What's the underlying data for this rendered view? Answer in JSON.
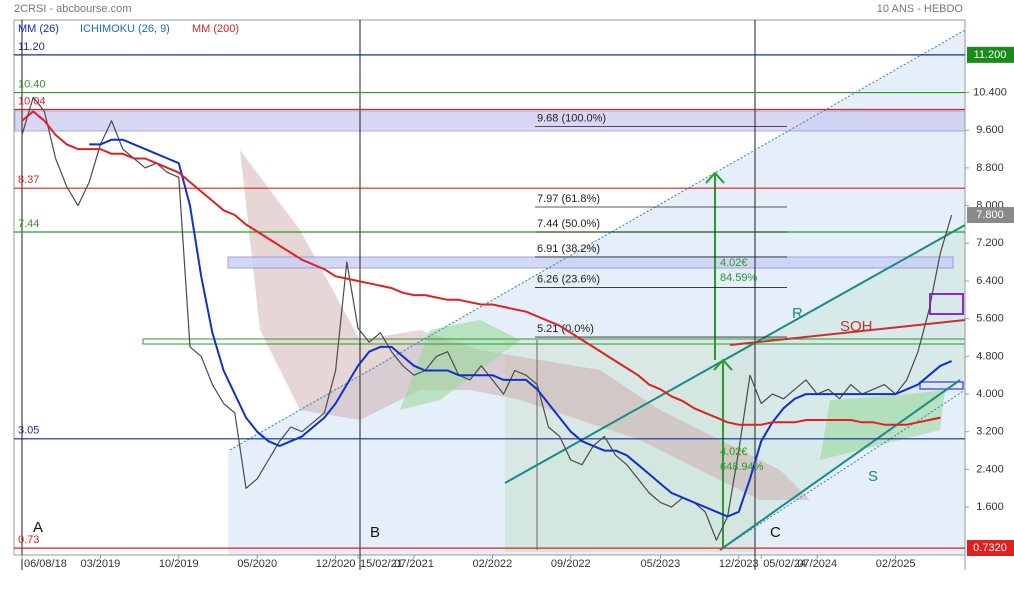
{
  "chart_data": {
    "type": "line",
    "title": "2CRSI - abcbourse.com",
    "subtitle": "10 ANS - HEBDO",
    "ichimoku_label": "ICHIMOKU (26, 9)",
    "categories": [
      "06/08/18",
      null,
      null,
      null,
      null,
      null,
      null,
      "03/2019",
      null,
      null,
      null,
      null,
      null,
      null,
      "10/2019",
      null,
      null,
      null,
      null,
      null,
      null,
      "05/2020",
      null,
      null,
      null,
      null,
      null,
      null,
      "12/2020",
      null,
      "15/02/21",
      null,
      null,
      null,
      null,
      "07/2021",
      null,
      null,
      null,
      null,
      null,
      null,
      "02/2022",
      null,
      null,
      null,
      null,
      null,
      null,
      "09/2022",
      null,
      null,
      null,
      null,
      null,
      null,
      null,
      "05/2023",
      null,
      null,
      null,
      null,
      null,
      null,
      "12/2023",
      null,
      "05/02/24",
      null,
      null,
      null,
      null,
      "07/2024",
      null,
      null,
      null,
      null,
      null,
      null,
      "02/2025",
      null,
      null,
      null,
      null,
      null,
      null
    ],
    "values": [
      9.5,
      10.3,
      10.0,
      9.0,
      8.4,
      8.0,
      8.5,
      9.3,
      9.8,
      9.2,
      9.0,
      8.8,
      8.9,
      8.7,
      8.6,
      5.0,
      4.8,
      4.2,
      3.8,
      3.6,
      2.0,
      2.2,
      2.6,
      3.0,
      3.3,
      3.2,
      3.4,
      3.6,
      4.5,
      6.8,
      5.4,
      5.1,
      5.3,
      4.9,
      4.6,
      4.4,
      4.5,
      4.8,
      4.9,
      4.4,
      4.3,
      4.6,
      4.3,
      4.0,
      4.5,
      4.4,
      4.2,
      3.3,
      3.1,
      2.6,
      2.5,
      2.9,
      3.1,
      2.7,
      2.5,
      2.2,
      1.9,
      1.7,
      1.6,
      1.8,
      1.7,
      1.5,
      0.9,
      1.4,
      2.8,
      4.4,
      3.8,
      4.0,
      3.9,
      4.1,
      4.3,
      4.0,
      4.1,
      3.9,
      4.2,
      4.0,
      4.1,
      4.2,
      4.0,
      4.3,
      4.9,
      5.8,
      7.0,
      7.8,
      null
    ],
    "color": "#4a4a4a",
    "series": [
      {
        "name": "MM (26)",
        "color": "#1030c8",
        "values": [
          null,
          null,
          null,
          null,
          null,
          null,
          9.3,
          9.3,
          9.4,
          9.4,
          9.3,
          9.2,
          9.1,
          9.0,
          8.9,
          8.0,
          6.5,
          5.3,
          4.5,
          4.0,
          3.5,
          3.2,
          3.0,
          2.9,
          3.0,
          3.1,
          3.3,
          3.5,
          3.8,
          4.2,
          4.6,
          4.9,
          5.0,
          5.0,
          4.8,
          4.6,
          4.5,
          4.5,
          4.5,
          4.4,
          4.4,
          4.4,
          4.4,
          4.3,
          4.3,
          4.3,
          4.1,
          3.8,
          3.5,
          3.2,
          3.0,
          2.9,
          2.8,
          2.8,
          2.7,
          2.5,
          2.3,
          2.1,
          1.9,
          1.8,
          1.7,
          1.6,
          1.5,
          1.4,
          1.5,
          2.2,
          3.0,
          3.4,
          3.7,
          3.9,
          4.0,
          4.0,
          4.0,
          4.0,
          4.0,
          4.0,
          4.0,
          4.0,
          4.0,
          4.1,
          4.2,
          4.4,
          4.6,
          4.7,
          null
        ]
      },
      {
        "name": "MM (200)",
        "color": "#e02020",
        "values": [
          9.8,
          10.0,
          9.8,
          9.5,
          9.3,
          9.2,
          9.2,
          9.2,
          9.1,
          9.1,
          9.0,
          9.0,
          8.9,
          8.8,
          8.7,
          8.5,
          8.3,
          8.1,
          7.9,
          7.8,
          7.6,
          7.45,
          7.3,
          7.15,
          7.0,
          6.85,
          6.75,
          6.65,
          6.5,
          6.45,
          6.4,
          6.35,
          6.3,
          6.25,
          6.15,
          6.1,
          6.1,
          6.05,
          6.0,
          6.0,
          5.95,
          5.9,
          5.9,
          5.85,
          5.8,
          5.75,
          5.65,
          5.55,
          5.45,
          5.3,
          5.15,
          5.0,
          4.85,
          4.7,
          4.55,
          4.4,
          4.2,
          4.1,
          3.95,
          3.85,
          3.7,
          3.6,
          3.5,
          3.4,
          3.35,
          3.35,
          3.35,
          3.4,
          3.4,
          3.4,
          3.45,
          3.45,
          3.45,
          3.45,
          3.45,
          3.4,
          3.4,
          3.35,
          3.35,
          3.35,
          3.4,
          3.45,
          3.5,
          null,
          null
        ]
      }
    ],
    "ylim": [
      0.35,
      11.94
    ],
    "yticks": [
      {
        "value": 1.6,
        "label": "1.600"
      },
      {
        "value": 2.4,
        "label": "2.400"
      },
      {
        "value": 3.2,
        "label": "3.200"
      },
      {
        "value": 4.0,
        "label": "4.000"
      },
      {
        "value": 4.8,
        "label": "4.800"
      },
      {
        "value": 5.6,
        "label": "5.600"
      },
      {
        "value": 6.4,
        "label": "6.400"
      },
      {
        "value": 7.2,
        "label": "7.200"
      },
      {
        "value": 8.0,
        "label": "8.000"
      },
      {
        "value": 8.8,
        "label": "8.800"
      },
      {
        "value": 9.6,
        "label": "9.600"
      },
      {
        "value": 10.4,
        "label": "10.400"
      }
    ],
    "grid": false,
    "levels": [
      {
        "value": 11.2,
        "label": "11.20",
        "color": "#1a2aa0"
      },
      {
        "value": 10.4,
        "label": "10.40",
        "color": "#2a9a2a"
      },
      {
        "value": 10.04,
        "label": "10.04",
        "color": "#e02020"
      },
      {
        "value": 8.37,
        "label": "8.37",
        "color": "#e02020"
      },
      {
        "value": 7.44,
        "label": "7.44",
        "color": "#2a9a2a"
      },
      {
        "value": 3.05,
        "label": "3.05",
        "color": "#1a2aa0"
      },
      {
        "value": 0.73,
        "label": "0.73",
        "color": "#e02020"
      }
    ],
    "fibonacci": [
      {
        "value": 9.68,
        "label": "9.68  (100.0%)"
      },
      {
        "value": 7.97,
        "label": "7.97  (61.8%)"
      },
      {
        "value": 7.44,
        "label": "7.44  (50.0%)"
      },
      {
        "value": 6.91,
        "label": "6.91  (38.2%)"
      },
      {
        "value": 6.26,
        "label": "6.26  (23.6%)"
      },
      {
        "value": 5.21,
        "label": "5.21  (0.0%)"
      }
    ],
    "price_tags": [
      {
        "value": 11.2,
        "label": "11.200",
        "color": "#1a8a1a"
      },
      {
        "value": 7.8,
        "label": "7.800",
        "color": "#8a8a8a"
      },
      {
        "value": 0.732,
        "label": "0.7320",
        "color": "#e02020"
      }
    ],
    "annotations": [
      "A",
      "B",
      "C",
      "R",
      "S",
      "SOH",
      "4.02€",
      "84.59%",
      "4.02€",
      "648.94%"
    ]
  }
}
